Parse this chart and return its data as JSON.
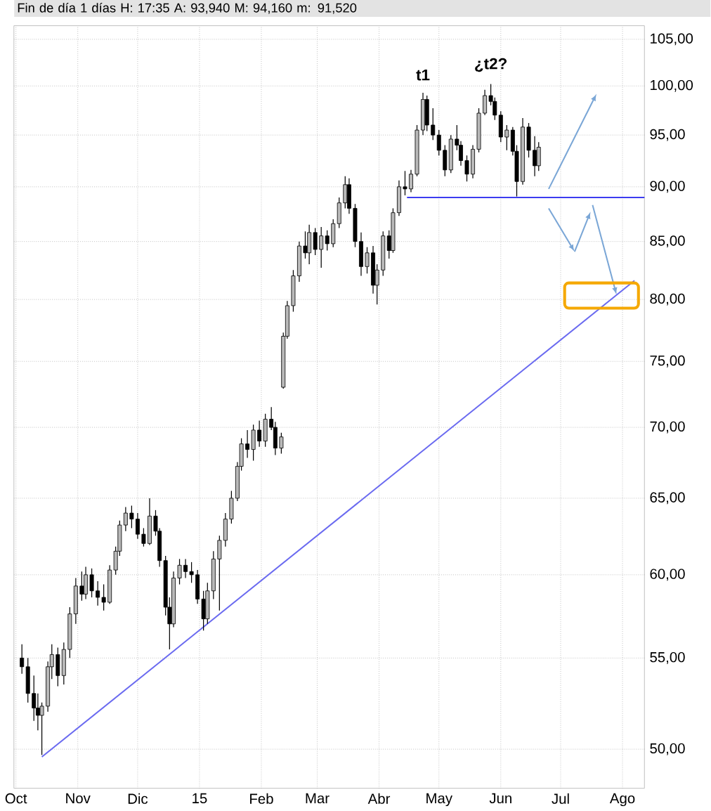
{
  "chart_data": {
    "type": "candlestick",
    "title": "Fin de día 1 días H: 17:35 A: 93,940 M: 94,160 m: 91,520",
    "x": [
      "2014-10-04",
      "2014-10-07",
      "2014-10-10",
      "2014-10-12",
      "2014-10-14",
      "2014-10-17",
      "2014-10-19",
      "2014-10-22",
      "2014-10-25",
      "2014-10-28",
      "2014-10-31",
      "2014-11-03",
      "2014-11-05",
      "2014-11-08",
      "2014-11-11",
      "2014-11-14",
      "2014-11-17",
      "2014-11-20",
      "2014-11-22",
      "2014-11-25",
      "2014-11-28",
      "2014-12-01",
      "2014-12-04",
      "2014-12-07",
      "2014-12-10",
      "2014-12-12",
      "2014-12-15",
      "2014-12-17",
      "2014-12-19",
      "2014-12-22",
      "2014-12-25",
      "2014-12-28",
      "2014-12-31",
      "2015-01-03",
      "2015-01-05",
      "2015-01-08",
      "2015-01-11",
      "2015-01-14",
      "2015-01-17",
      "2015-01-20",
      "2015-01-22",
      "2015-01-25",
      "2015-01-28",
      "2015-01-31",
      "2015-02-03",
      "2015-02-06",
      "2015-02-08",
      "2015-02-11",
      "2015-02-12",
      "2015-02-14",
      "2015-02-17",
      "2015-02-20",
      "2015-02-23",
      "2015-02-25",
      "2015-02-28",
      "2015-03-03",
      "2015-03-06",
      "2015-03-09",
      "2015-03-12",
      "2015-03-15",
      "2015-03-17",
      "2015-03-20",
      "2015-03-23",
      "2015-03-26",
      "2015-03-29",
      "2015-03-31",
      "2015-04-03",
      "2015-04-06",
      "2015-04-08",
      "2015-04-11",
      "2015-04-14",
      "2015-04-17",
      "2015-04-20",
      "2015-04-23",
      "2015-04-25",
      "2015-04-28",
      "2015-05-01",
      "2015-05-04",
      "2015-05-07",
      "2015-05-10",
      "2015-05-12",
      "2015-05-15",
      "2015-05-18",
      "2015-05-21",
      "2015-05-24",
      "2015-05-27",
      "2015-05-29",
      "2015-06-01",
      "2015-06-04",
      "2015-06-07",
      "2015-06-09",
      "2015-06-12",
      "2015-06-15",
      "2015-06-18",
      "2015-06-20"
    ],
    "ohlc": [
      [
        55.0,
        55.8,
        54.1,
        54.5
      ],
      [
        54.5,
        55.0,
        52.5,
        53.0
      ],
      [
        53.0,
        54.0,
        51.5,
        52.2
      ],
      [
        52.2,
        53.0,
        51.0,
        51.8
      ],
      [
        51.8,
        52.5,
        49.7,
        52.3
      ],
      [
        52.3,
        54.8,
        52.0,
        54.5
      ],
      [
        54.5,
        55.8,
        53.8,
        55.2
      ],
      [
        55.2,
        55.6,
        53.4,
        54.0
      ],
      [
        54.0,
        55.9,
        53.5,
        55.5
      ],
      [
        55.5,
        58.0,
        55.0,
        57.6
      ],
      [
        57.6,
        59.8,
        57.0,
        59.3
      ],
      [
        59.3,
        60.2,
        58.4,
        58.8
      ],
      [
        58.8,
        60.5,
        58.5,
        60.0
      ],
      [
        60.0,
        60.4,
        58.6,
        59.0
      ],
      [
        59.0,
        59.6,
        58.1,
        58.6
      ],
      [
        58.6,
        59.4,
        57.8,
        58.3
      ],
      [
        58.3,
        60.6,
        58.2,
        60.3
      ],
      [
        60.3,
        61.8,
        60.0,
        61.5
      ],
      [
        61.5,
        63.5,
        61.2,
        63.2
      ],
      [
        63.2,
        64.4,
        62.8,
        64.0
      ],
      [
        64.0,
        64.5,
        63.0,
        63.6
      ],
      [
        63.6,
        64.0,
        62.3,
        62.6
      ],
      [
        62.6,
        63.0,
        61.8,
        62.0
      ],
      [
        62.0,
        65.0,
        61.9,
        63.8
      ],
      [
        63.8,
        64.2,
        62.5,
        62.8
      ],
      [
        62.8,
        63.0,
        60.5,
        60.9
      ],
      [
        60.9,
        61.2,
        57.5,
        58.0
      ],
      [
        58.0,
        58.6,
        55.5,
        57.0
      ],
      [
        57.0,
        60.2,
        56.8,
        59.8
      ],
      [
        59.8,
        61.0,
        59.4,
        60.6
      ],
      [
        60.6,
        61.0,
        59.8,
        60.2
      ],
      [
        60.2,
        60.8,
        59.5,
        60.0
      ],
      [
        60.0,
        60.3,
        58.2,
        58.5
      ],
      [
        58.5,
        59.0,
        56.6,
        57.3
      ],
      [
        57.3,
        59.5,
        57.0,
        59.0
      ],
      [
        59.0,
        61.5,
        58.5,
        61.0
      ],
      [
        61.0,
        62.5,
        57.8,
        62.2
      ],
      [
        62.2,
        64.0,
        61.8,
        63.6
      ],
      [
        63.6,
        65.5,
        63.3,
        65.0
      ],
      [
        65.0,
        67.5,
        64.8,
        67.2
      ],
      [
        67.2,
        69.2,
        66.9,
        68.8
      ],
      [
        68.8,
        69.8,
        67.8,
        68.4
      ],
      [
        68.4,
        70.2,
        67.6,
        69.8
      ],
      [
        69.8,
        70.5,
        68.6,
        69.0
      ],
      [
        69.0,
        71.0,
        68.6,
        70.6
      ],
      [
        70.6,
        71.5,
        69.8,
        70.0
      ],
      [
        70.0,
        70.4,
        68.0,
        68.5
      ],
      [
        68.5,
        69.6,
        68.1,
        69.3
      ],
      [
        73.0,
        77.3,
        72.9,
        77.0
      ],
      [
        77.0,
        79.9,
        76.8,
        79.5
      ],
      [
        79.5,
        82.5,
        79.0,
        82.0
      ],
      [
        82.0,
        85.0,
        81.5,
        84.6
      ],
      [
        84.6,
        85.9,
        83.5,
        84.0
      ],
      [
        84.0,
        86.5,
        83.0,
        85.8
      ],
      [
        85.8,
        86.2,
        83.8,
        84.3
      ],
      [
        84.3,
        86.3,
        82.7,
        85.5
      ],
      [
        85.5,
        86.0,
        84.2,
        84.8
      ],
      [
        84.8,
        87.0,
        84.5,
        86.6
      ],
      [
        86.6,
        89.0,
        86.2,
        88.5
      ],
      [
        88.5,
        91.0,
        88.0,
        90.2
      ],
      [
        90.2,
        90.8,
        87.5,
        88.0
      ],
      [
        88.0,
        88.4,
        84.5,
        85.0
      ],
      [
        85.0,
        85.8,
        82.0,
        82.8
      ],
      [
        82.8,
        84.5,
        82.2,
        84.0
      ],
      [
        84.0,
        84.6,
        80.5,
        81.2
      ],
      [
        81.2,
        83.0,
        79.6,
        82.5
      ],
      [
        82.5,
        85.9,
        82.0,
        85.5
      ],
      [
        85.5,
        86.0,
        83.5,
        84.2
      ],
      [
        84.2,
        88.0,
        84.0,
        87.6
      ],
      [
        87.6,
        90.6,
        87.3,
        90.0
      ],
      [
        90.0,
        91.5,
        89.2,
        89.8
      ],
      [
        89.8,
        91.6,
        89.5,
        91.2
      ],
      [
        91.2,
        96.0,
        91.0,
        95.5
      ],
      [
        95.5,
        99.3,
        95.0,
        98.6
      ],
      [
        98.6,
        99.0,
        95.4,
        96.0
      ],
      [
        96.0,
        97.7,
        94.5,
        95.0
      ],
      [
        95.0,
        95.5,
        93.0,
        93.5
      ],
      [
        93.5,
        94.0,
        91.0,
        91.6
      ],
      [
        91.6,
        95.0,
        91.3,
        94.6
      ],
      [
        94.6,
        96.0,
        93.5,
        94.0
      ],
      [
        94.0,
        94.4,
        92.0,
        92.5
      ],
      [
        92.5,
        93.0,
        90.5,
        91.2
      ],
      [
        91.2,
        94.0,
        90.8,
        93.6
      ],
      [
        93.6,
        97.7,
        93.3,
        97.2
      ],
      [
        97.2,
        99.6,
        97.0,
        99.0
      ],
      [
        99.0,
        100.2,
        98.0,
        98.4
      ],
      [
        98.4,
        98.8,
        96.5,
        97.0
      ],
      [
        97.0,
        97.4,
        94.3,
        94.8
      ],
      [
        94.8,
        96.0,
        93.5,
        95.5
      ],
      [
        95.5,
        95.8,
        93.0,
        93.4
      ],
      [
        93.4,
        94.0,
        89.1,
        90.5
      ],
      [
        90.5,
        96.7,
        90.2,
        95.8
      ],
      [
        95.8,
        96.2,
        92.8,
        93.5
      ],
      [
        93.5,
        94.9,
        91.0,
        92.0
      ],
      [
        92.0,
        94.3,
        91.5,
        93.8
      ]
    ],
    "series": [
      {
        "type": "line",
        "color": "#3c3cf0",
        "x": [
          "2015-04-15",
          "2015-08-12"
        ],
        "values": [
          89.0,
          89.0
        ]
      },
      {
        "type": "line",
        "color": "#6a6af0",
        "x": [
          "2014-10-14",
          "2015-08-07"
        ],
        "values": [
          49.6,
          81.6
        ]
      }
    ],
    "log": "y",
    "grid": true,
    "xlim": [
      "2014-09-30",
      "2015-08-12"
    ],
    "xticks": [
      {
        "value": "2014-10-01",
        "label": "Oct"
      },
      {
        "value": "2014-11-01",
        "label": "Nov"
      },
      {
        "value": "2014-12-01",
        "label": "Dic"
      },
      {
        "value": "2015-01-01",
        "label": "15"
      },
      {
        "value": "2015-02-01",
        "label": "Feb"
      },
      {
        "value": "2015-03-01",
        "label": "Mar"
      },
      {
        "value": "2015-04-01",
        "label": "Abr"
      },
      {
        "value": "2015-05-01",
        "label": "May"
      },
      {
        "value": "2015-06-01",
        "label": "Jun"
      },
      {
        "value": "2015-07-01",
        "label": "Jul"
      },
      {
        "value": "2015-08-01",
        "label": "Ago"
      }
    ],
    "ylim": [
      48,
      106.5
    ],
    "yticks": [
      {
        "value": 50,
        "label": "50,00"
      },
      {
        "value": 55,
        "label": "55,00"
      },
      {
        "value": 60,
        "label": "60,00"
      },
      {
        "value": 65,
        "label": "65,00"
      },
      {
        "value": 70,
        "label": "70,00"
      },
      {
        "value": 75,
        "label": "75,00"
      },
      {
        "value": 80,
        "label": "80,00"
      },
      {
        "value": 85,
        "label": "85,00"
      },
      {
        "value": 90,
        "label": "90,00"
      },
      {
        "value": 95,
        "label": "95,00"
      },
      {
        "value": 100,
        "label": "100,00"
      },
      {
        "value": 105,
        "label": "105,00"
      }
    ],
    "annotations": [
      {
        "text": "t1",
        "x": "2015-04-23",
        "y": 99.3
      },
      {
        "text": "¿t2?",
        "x": "2015-05-27",
        "y": 100.2
      }
    ]
  }
}
